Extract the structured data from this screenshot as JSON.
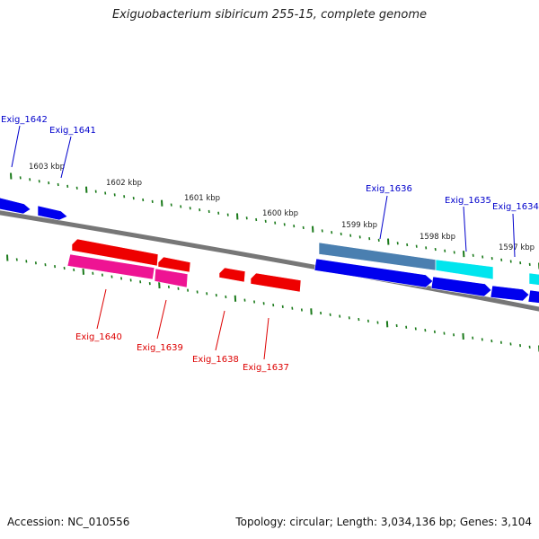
{
  "title": "Exiguobacterium sibiricum 255-15, complete genome",
  "footer": {
    "accession": "Accession: NC_010556",
    "topology": "Topology: circular; Length: 3,034,136 bp; Genes: 3,104"
  },
  "colors": {
    "backbone": "#777777",
    "tick": "#1a7a1a",
    "forward_label": "#0000cc",
    "reverse_label": "#dd0000",
    "gene_blue": "#0000ee",
    "gene_steel": "#4a7fb0",
    "gene_cyan": "#00e5ee",
    "gene_red": "#ee0000",
    "gene_pink": "#ee1493"
  },
  "position_labels": [
    "1603 kbp",
    "1602 kbp",
    "1601 kbp",
    "1600 kbp",
    "1599 kbp",
    "1598 kbp",
    "1597 kbp"
  ],
  "forward_gene_labels": [
    "Exig_1642",
    "Exig_1641",
    "Exig_1636",
    "Exig_1635",
    "Exig_1634"
  ],
  "reverse_gene_labels": [
    "Exig_1640",
    "Exig_1639",
    "Exig_1638",
    "Exig_1637"
  ]
}
